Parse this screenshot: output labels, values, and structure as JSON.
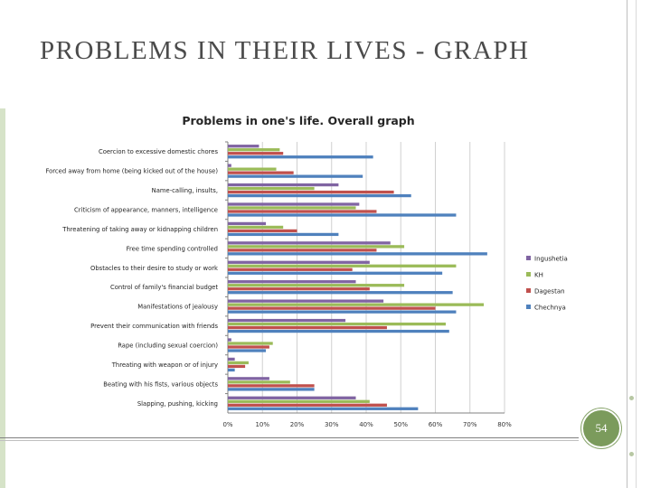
{
  "slide": {
    "title": "PROBLEMS IN THEIR LIVES - GRAPH",
    "page_number": "54"
  },
  "chart_data": {
    "type": "bar",
    "orientation": "horizontal",
    "title": "Problems in one's life. Overall graph",
    "categories": [
      "Coercion to excessive domestic chores",
      "Forced away from home (being kicked out of the house)",
      "Name-calling, insults,",
      "Criticism of appearance, manners, intelligence",
      "Threatening of taking away or kidnapping children",
      "Free time spending controlled",
      "Obstacles to their desire to study or work",
      "Control of family's financial budget",
      "Manifestations of jealousy",
      "Prevent their communication with friends",
      "Rape (including sexual coercion)",
      "Threating with weapon or of injury",
      "Beating with his fists, various objects",
      "Slapping, pushing, kicking"
    ],
    "series": [
      {
        "name": "Ingushetia",
        "color": "#8064a2",
        "values": [
          9,
          1,
          32,
          38,
          11,
          47,
          41,
          37,
          45,
          34,
          1,
          2,
          12,
          37
        ]
      },
      {
        "name": "KH",
        "color": "#9bbb59",
        "values": [
          15,
          14,
          25,
          37,
          16,
          51,
          66,
          51,
          74,
          63,
          13,
          6,
          18,
          41
        ]
      },
      {
        "name": "Dagestan",
        "color": "#c0504d",
        "values": [
          16,
          19,
          48,
          43,
          20,
          43,
          36,
          41,
          60,
          46,
          12,
          5,
          25,
          46
        ]
      },
      {
        "name": "Chechnya",
        "color": "#4f81bd",
        "values": [
          42,
          39,
          53,
          66,
          32,
          75,
          62,
          65,
          66,
          64,
          11,
          2,
          25,
          55
        ]
      }
    ],
    "x_ticks": [
      "0%",
      "10%",
      "20%",
      "30%",
      "40%",
      "50%",
      "60%",
      "70%",
      "80%"
    ],
    "xlim": [
      0,
      80
    ],
    "grid": "vertical",
    "legend_position": "right"
  }
}
